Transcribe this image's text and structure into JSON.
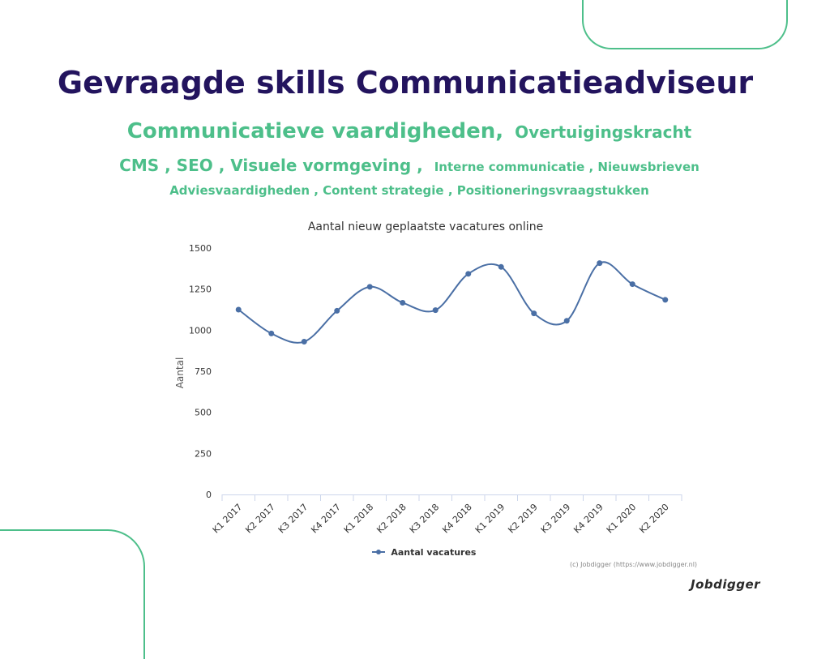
{
  "header": {
    "title": "Gevraagde skills Communicatieadviseur"
  },
  "skills": {
    "row1": [
      {
        "text": "Communicatieve vaardigheden,",
        "size": "l"
      },
      {
        "text": "Overtuigingskracht",
        "size": "m"
      }
    ],
    "row2": [
      {
        "text": "CMS , SEO , Visuele vormgeving ,",
        "size": "m"
      },
      {
        "text": "Interne communicatie , Nieuwsbrieven",
        "size": "s"
      }
    ],
    "row3": [
      {
        "text": "Adviesvaardigheden , Content strategie , Positioneringsvraagstukken",
        "size": "s"
      }
    ]
  },
  "chart_data": {
    "type": "line",
    "title": "Aantal nieuw geplaatste vacatures online",
    "xlabel": "",
    "ylabel": "Aantal",
    "categories": [
      "K1 2017",
      "K2 2017",
      "K3 2017",
      "K4 2017",
      "K1 2018",
      "K2 2018",
      "K3 2018",
      "K4 2018",
      "K1 2019",
      "K2 2019",
      "K3 2019",
      "K4 2019",
      "K1 2020",
      "K2 2020"
    ],
    "series": [
      {
        "name": "Aantal vacatures",
        "values": [
          1125,
          980,
          930,
          1118,
          1264,
          1167,
          1122,
          1343,
          1385,
          1102,
          1057,
          1408,
          1280,
          1185
        ]
      }
    ],
    "ylim": [
      0,
      1500
    ],
    "yticks": [
      0,
      250,
      500,
      750,
      1000,
      1250,
      1500
    ],
    "grid": false,
    "legend": "bottom-center",
    "line_color": "#4a6fa5"
  },
  "footer": {
    "credits": "(c) Jobdigger (https://www.jobdigger.nl)",
    "brand": "Jobdigger"
  }
}
